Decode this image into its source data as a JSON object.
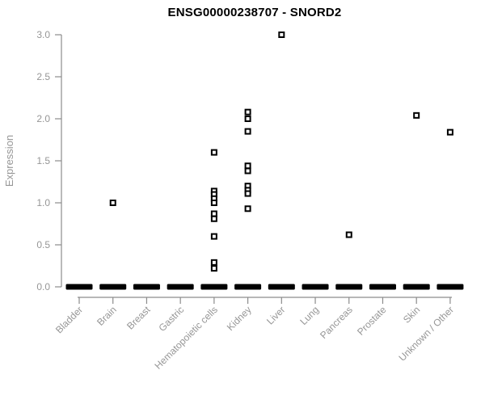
{
  "chart_data": {
    "type": "scatter",
    "title": "ENSG00000238707 - SNORD2",
    "xlabel": "",
    "ylabel": "Expression",
    "ylim": [
      0.0,
      3.0
    ],
    "yticks": [
      0.0,
      0.5,
      1.0,
      1.5,
      2.0,
      2.5,
      3.0
    ],
    "ytick_labels": [
      "0.0",
      "0.5",
      "1.0",
      "1.5",
      "2.0",
      "2.5",
      "3.0"
    ],
    "grid": false,
    "legend_position": "none",
    "marker": "open-square",
    "note": "Every category has a dense cluster of overlapping points at expression 0, rendered as a thick black bar on the baseline.",
    "categories": [
      "Bladder",
      "Brain",
      "Breast",
      "Gastric",
      "Hematopoietic cells",
      "Kidney",
      "Liver",
      "Lung",
      "Pancreas",
      "Prostate",
      "Skin",
      "Unknown / Other"
    ],
    "series": [
      {
        "category": "Bladder",
        "nonzero_values": [],
        "zero_cluster": true
      },
      {
        "category": "Brain",
        "nonzero_values": [
          1.0
        ],
        "zero_cluster": true
      },
      {
        "category": "Breast",
        "nonzero_values": [],
        "zero_cluster": true
      },
      {
        "category": "Gastric",
        "nonzero_values": [],
        "zero_cluster": true
      },
      {
        "category": "Hematopoietic cells",
        "nonzero_values": [
          1.6,
          1.14,
          1.1,
          1.05,
          1.0,
          0.87,
          0.81,
          0.6,
          0.29,
          0.22
        ],
        "zero_cluster": true
      },
      {
        "category": "Kidney",
        "nonzero_values": [
          2.08,
          2.0,
          1.85,
          1.44,
          1.38,
          1.2,
          1.15,
          1.11,
          0.93
        ],
        "zero_cluster": true
      },
      {
        "category": "Liver",
        "nonzero_values": [
          3.0
        ],
        "zero_cluster": true
      },
      {
        "category": "Lung",
        "nonzero_values": [],
        "zero_cluster": true
      },
      {
        "category": "Pancreas",
        "nonzero_values": [
          0.62
        ],
        "zero_cluster": true
      },
      {
        "category": "Prostate",
        "nonzero_values": [],
        "zero_cluster": true
      },
      {
        "category": "Skin",
        "nonzero_values": [
          2.04
        ],
        "zero_cluster": true
      },
      {
        "category": "Unknown / Other",
        "nonzero_values": [
          1.84
        ],
        "zero_cluster": true
      }
    ]
  },
  "colors": {
    "background": "#ffffff",
    "title": "#000000",
    "axis": "#8c8c8c",
    "tick_label": "#969696",
    "point": "#000000",
    "point_center": "#ffffff"
  }
}
